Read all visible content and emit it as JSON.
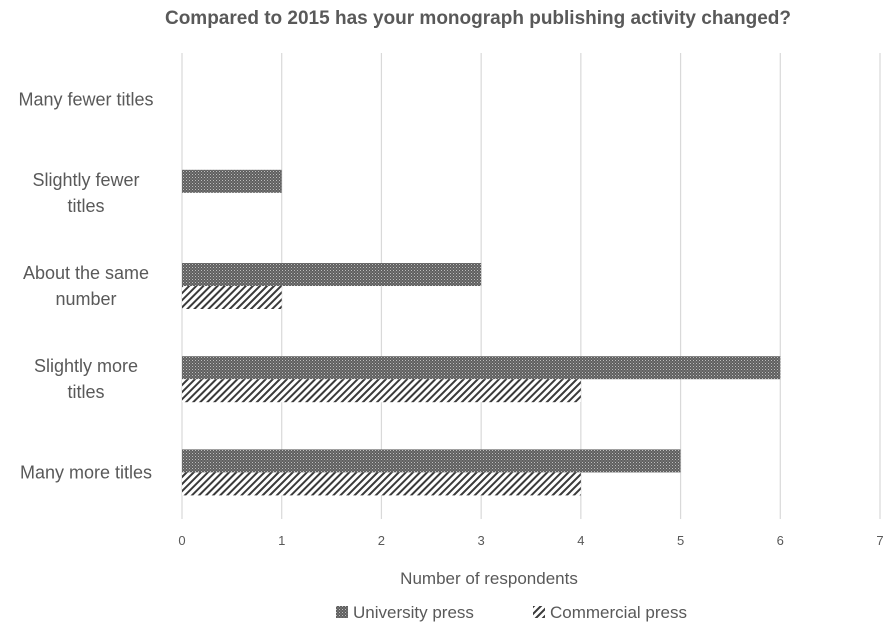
{
  "chart_data": {
    "type": "bar",
    "orientation": "horizontal",
    "title": "Compared to 2015 has your monograph publishing activity changed?",
    "categories": [
      "Many fewer titles",
      "Slightly fewer titles",
      "About the same number",
      "Slightly more titles",
      "Many more titles"
    ],
    "category_label_lines": [
      [
        "Many fewer titles"
      ],
      [
        "Slightly fewer",
        "titles"
      ],
      [
        "About the same",
        "number"
      ],
      [
        "Slightly more",
        "titles"
      ],
      [
        "Many more titles"
      ]
    ],
    "series": [
      {
        "name": "University press",
        "values": [
          0,
          1,
          3,
          6,
          5
        ],
        "color": "#595959",
        "pattern": "dense-dots"
      },
      {
        "name": "Commercial press",
        "values": [
          0,
          0,
          1,
          4,
          4
        ],
        "color": "#404040",
        "pattern": "diagonal-hatch"
      }
    ],
    "xlabel": "Number of respondents",
    "ylabel": "",
    "xlim": [
      0,
      7
    ],
    "xticks": [
      "0",
      "1",
      "2",
      "3",
      "4",
      "5",
      "6",
      "7"
    ],
    "grid": true,
    "legend": "bottom"
  }
}
